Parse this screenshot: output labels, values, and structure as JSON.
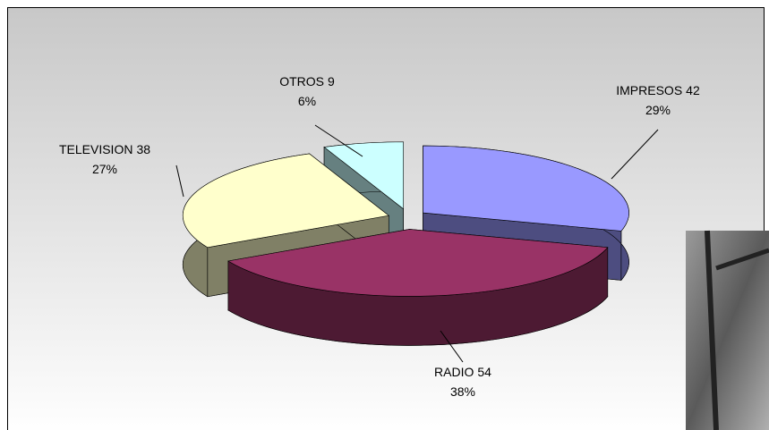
{
  "chart_data": {
    "type": "pie3d",
    "categories": [
      "IMPRESOS",
      "RADIO",
      "TELEVISION",
      "OTROS"
    ],
    "values": [
      42,
      54,
      38,
      9
    ],
    "percent_labels": [
      "29%",
      "38%",
      "27%",
      "6%"
    ],
    "colors": [
      "#9999ff",
      "#993366",
      "#ffffcc",
      "#ccffff"
    ],
    "side_colors": [
      "#4d4d80",
      "#4d1a33",
      "#808066",
      "#668080"
    ]
  }
}
